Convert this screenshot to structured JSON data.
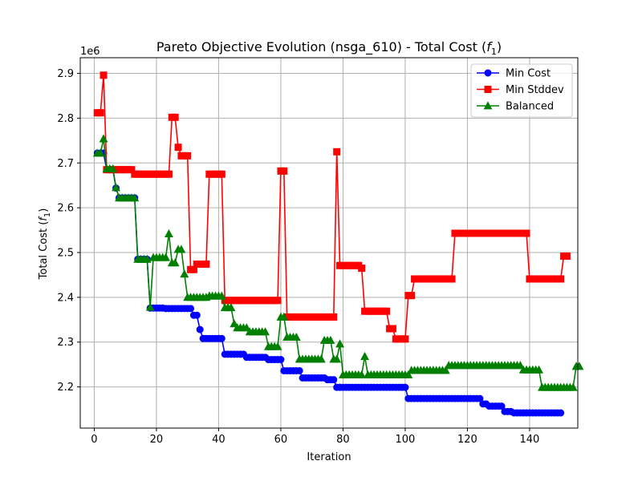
{
  "chart_data": {
    "type": "line",
    "title": "Pareto Objective Evolution (nsga_610) - Total Cost (",
    "title_symbol": "f",
    "title_subscript": "1",
    "title_end": ")",
    "xlabel": "Iteration",
    "ylabel": "Total Cost (",
    "ylabel_symbol": "f",
    "ylabel_subscript": "1",
    "ylabel_end": ")",
    "y_offset_label": "1e6",
    "xlim": [
      -4.5,
      155.5
    ],
    "ylim": [
      2.108,
      2.935
    ],
    "x_ticks": [
      0,
      20,
      40,
      60,
      80,
      100,
      120,
      140
    ],
    "y_ticks": [
      2.2,
      2.3,
      2.4,
      2.5,
      2.6,
      2.7,
      2.8,
      2.9
    ],
    "y_tick_labels": [
      "2.2",
      "2.3",
      "2.4",
      "2.5",
      "2.6",
      "2.7",
      "2.8",
      "2.9"
    ],
    "grid": true,
    "legend_position": "top-right",
    "series": [
      {
        "name": "Min Cost",
        "color": "#0000ff",
        "marker": "circle",
        "values": [
          2.722,
          2.722,
          2.722,
          2.685,
          2.685,
          2.685,
          2.644,
          2.622,
          2.622,
          2.622,
          2.622,
          2.622,
          2.622,
          2.485,
          2.485,
          2.485,
          2.485,
          2.376,
          2.376,
          2.376,
          2.376,
          2.376,
          2.375,
          2.375,
          2.375,
          2.375,
          2.375,
          2.375,
          2.375,
          2.375,
          2.375,
          2.36,
          2.36,
          2.328,
          2.308,
          2.308,
          2.308,
          2.308,
          2.308,
          2.308,
          2.308,
          2.273,
          2.273,
          2.273,
          2.273,
          2.273,
          2.273,
          2.273,
          2.266,
          2.266,
          2.266,
          2.266,
          2.266,
          2.266,
          2.266,
          2.261,
          2.261,
          2.261,
          2.261,
          2.261,
          2.236,
          2.236,
          2.236,
          2.236,
          2.236,
          2.236,
          2.22,
          2.22,
          2.22,
          2.22,
          2.22,
          2.22,
          2.22,
          2.22,
          2.216,
          2.216,
          2.216,
          2.199,
          2.199,
          2.199,
          2.199,
          2.199,
          2.199,
          2.199,
          2.199,
          2.199,
          2.199,
          2.199,
          2.199,
          2.199,
          2.199,
          2.199,
          2.199,
          2.199,
          2.199,
          2.199,
          2.199,
          2.199,
          2.199,
          2.199,
          2.174,
          2.174,
          2.174,
          2.174,
          2.174,
          2.174,
          2.174,
          2.174,
          2.174,
          2.174,
          2.174,
          2.174,
          2.174,
          2.174,
          2.174,
          2.174,
          2.174,
          2.174,
          2.174,
          2.174,
          2.174,
          2.174,
          2.174,
          2.174,
          2.162,
          2.162,
          2.157,
          2.157,
          2.157,
          2.157,
          2.157,
          2.145,
          2.145,
          2.145,
          2.142,
          2.142,
          2.142,
          2.142,
          2.142,
          2.142,
          2.142,
          2.142,
          2.142,
          2.142,
          2.142,
          2.142,
          2.142,
          2.142,
          2.142,
          2.142
        ]
      },
      {
        "name": "Min Stddev",
        "color": "#ff0000",
        "marker": "square",
        "values": [
          2.812,
          2.812,
          2.896,
          2.685,
          2.685,
          2.685,
          2.685,
          2.685,
          2.685,
          2.685,
          2.685,
          2.685,
          2.675,
          2.675,
          2.675,
          2.675,
          2.675,
          2.675,
          2.675,
          2.675,
          2.675,
          2.675,
          2.675,
          2.675,
          2.802,
          2.802,
          2.735,
          2.716,
          2.716,
          2.716,
          2.462,
          2.462,
          2.474,
          2.474,
          2.474,
          2.474,
          2.675,
          2.675,
          2.675,
          2.675,
          2.675,
          2.393,
          2.393,
          2.393,
          2.393,
          2.393,
          2.393,
          2.393,
          2.393,
          2.393,
          2.393,
          2.393,
          2.393,
          2.393,
          2.393,
          2.393,
          2.393,
          2.393,
          2.393,
          2.682,
          2.682,
          2.356,
          2.356,
          2.356,
          2.356,
          2.356,
          2.356,
          2.356,
          2.356,
          2.356,
          2.356,
          2.356,
          2.356,
          2.356,
          2.356,
          2.356,
          2.356,
          2.725,
          2.471,
          2.471,
          2.471,
          2.471,
          2.471,
          2.471,
          2.471,
          2.465,
          2.369,
          2.369,
          2.369,
          2.369,
          2.369,
          2.369,
          2.369,
          2.369,
          2.33,
          2.33,
          2.307,
          2.307,
          2.307,
          2.307,
          2.404,
          2.404,
          2.441,
          2.441,
          2.441,
          2.441,
          2.441,
          2.441,
          2.441,
          2.441,
          2.441,
          2.441,
          2.441,
          2.441,
          2.441,
          2.543,
          2.543,
          2.543,
          2.543,
          2.543,
          2.543,
          2.543,
          2.543,
          2.543,
          2.543,
          2.543,
          2.543,
          2.543,
          2.543,
          2.543,
          2.543,
          2.543,
          2.543,
          2.543,
          2.543,
          2.543,
          2.543,
          2.543,
          2.543,
          2.441,
          2.441,
          2.441,
          2.441,
          2.441,
          2.441,
          2.441,
          2.441,
          2.441,
          2.441,
          2.441,
          2.492,
          2.492
        ]
      },
      {
        "name": "Balanced",
        "color": "#008000",
        "marker": "triangle",
        "values": [
          2.722,
          2.722,
          2.754,
          2.687,
          2.687,
          2.687,
          2.645,
          2.622,
          2.622,
          2.622,
          2.622,
          2.622,
          2.622,
          2.485,
          2.485,
          2.485,
          2.485,
          2.378,
          2.489,
          2.489,
          2.489,
          2.489,
          2.489,
          2.542,
          2.477,
          2.477,
          2.507,
          2.507,
          2.452,
          2.4,
          2.4,
          2.4,
          2.4,
          2.4,
          2.4,
          2.4,
          2.403,
          2.403,
          2.403,
          2.403,
          2.403,
          2.377,
          2.377,
          2.377,
          2.341,
          2.332,
          2.332,
          2.332,
          2.332,
          2.323,
          2.323,
          2.323,
          2.323,
          2.323,
          2.323,
          2.29,
          2.29,
          2.29,
          2.29,
          2.356,
          2.356,
          2.311,
          2.311,
          2.311,
          2.311,
          2.262,
          2.262,
          2.262,
          2.262,
          2.262,
          2.262,
          2.262,
          2.262,
          2.304,
          2.304,
          2.304,
          2.262,
          2.262,
          2.296,
          2.227,
          2.227,
          2.227,
          2.227,
          2.227,
          2.227,
          2.227,
          2.268,
          2.227,
          2.227,
          2.227,
          2.227,
          2.227,
          2.227,
          2.227,
          2.227,
          2.227,
          2.227,
          2.227,
          2.227,
          2.227,
          2.227,
          2.237,
          2.237,
          2.237,
          2.237,
          2.237,
          2.237,
          2.237,
          2.237,
          2.237,
          2.237,
          2.237,
          2.237,
          2.248,
          2.248,
          2.248,
          2.248,
          2.248,
          2.248,
          2.248,
          2.248,
          2.248,
          2.248,
          2.248,
          2.248,
          2.248,
          2.248,
          2.248,
          2.248,
          2.248,
          2.248,
          2.248,
          2.248,
          2.248,
          2.248,
          2.248,
          2.248,
          2.238,
          2.238,
          2.238,
          2.238,
          2.238,
          2.238,
          2.199,
          2.199,
          2.199,
          2.199,
          2.199,
          2.199,
          2.199,
          2.199,
          2.199,
          2.199,
          2.199,
          2.246,
          2.246
        ]
      }
    ]
  }
}
